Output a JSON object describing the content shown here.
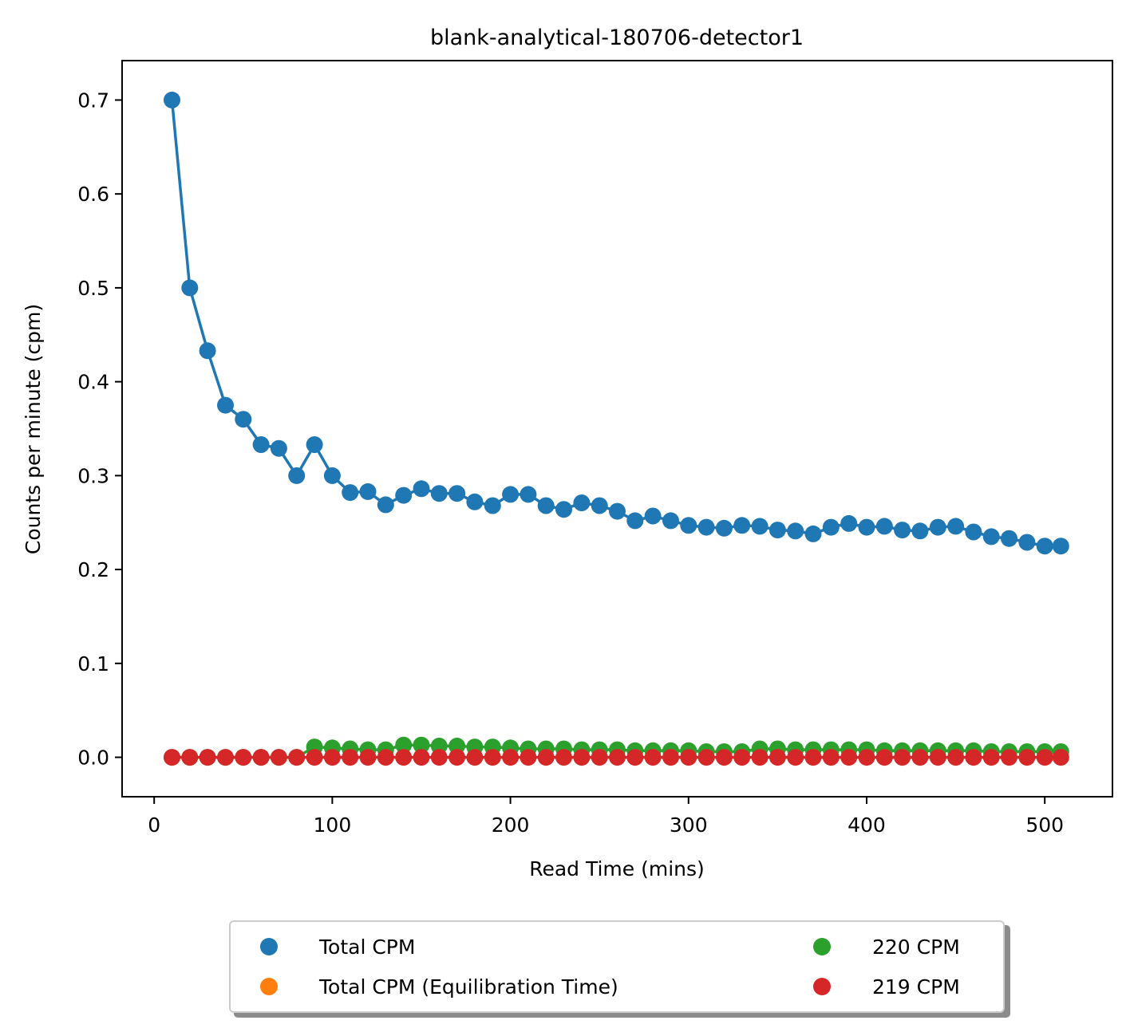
{
  "chart_data": {
    "type": "scatter",
    "title": "blank-analytical-180706-detector1",
    "xlabel": "Read Time (mins)",
    "ylabel": "Counts per minute (cpm)",
    "xlim": [
      -18,
      538
    ],
    "ylim": [
      -0.042,
      0.742
    ],
    "xticks": [
      0,
      100,
      200,
      300,
      400,
      500
    ],
    "yticks": [
      0.0,
      0.1,
      0.2,
      0.3,
      0.4,
      0.5,
      0.6,
      0.7
    ],
    "xtick_labels": [
      "0",
      "100",
      "200",
      "300",
      "400",
      "500"
    ],
    "ytick_labels": [
      "0.0",
      "0.1",
      "0.2",
      "0.3",
      "0.4",
      "0.5",
      "0.6",
      "0.7"
    ],
    "grid": false,
    "legend_position": "bottom-center",
    "legend": [
      {
        "label": "Total CPM",
        "color": "#1f77b4"
      },
      {
        "label": "Total CPM (Equilibration Time)",
        "color": "#ff7f0e"
      },
      {
        "label": "220 CPM",
        "color": "#2ca02c"
      },
      {
        "label": "219 CPM",
        "color": "#d62728"
      }
    ],
    "x": [
      10,
      20,
      30,
      40,
      50,
      60,
      70,
      80,
      90,
      100,
      110,
      120,
      130,
      140,
      150,
      160,
      170,
      180,
      190,
      200,
      210,
      220,
      230,
      240,
      250,
      260,
      270,
      280,
      290,
      300,
      310,
      320,
      330,
      340,
      350,
      360,
      370,
      380,
      390,
      400,
      410,
      420,
      430,
      440,
      450,
      460,
      470,
      480,
      490,
      500,
      509
    ],
    "series": [
      {
        "name": "Total CPM",
        "color": "#1f77b4",
        "line": true,
        "values": [
          0.7,
          0.5,
          0.433,
          0.375,
          0.36,
          0.333,
          0.329,
          0.3,
          0.333,
          0.3,
          0.282,
          0.283,
          0.269,
          0.279,
          0.286,
          0.281,
          0.281,
          0.272,
          0.268,
          0.28,
          0.28,
          0.268,
          0.264,
          0.271,
          0.268,
          0.262,
          0.252,
          0.257,
          0.252,
          0.247,
          0.245,
          0.244,
          0.247,
          0.246,
          0.242,
          0.241,
          0.238,
          0.245,
          0.249,
          0.245,
          0.246,
          0.242,
          0.241,
          0.245,
          0.246,
          0.24,
          0.235,
          0.233,
          0.229,
          0.225,
          0.225
        ]
      },
      {
        "name": "220 CPM",
        "color": "#2ca02c",
        "line": true,
        "values": [
          0.0,
          0.0,
          0.0,
          0.0,
          0.0,
          0.0,
          0.0,
          0.0,
          0.011,
          0.01,
          0.009,
          0.008,
          0.008,
          0.013,
          0.013,
          0.012,
          0.012,
          0.011,
          0.011,
          0.01,
          0.009,
          0.009,
          0.009,
          0.008,
          0.008,
          0.008,
          0.007,
          0.007,
          0.007,
          0.007,
          0.006,
          0.006,
          0.006,
          0.009,
          0.009,
          0.008,
          0.008,
          0.008,
          0.008,
          0.008,
          0.007,
          0.007,
          0.007,
          0.007,
          0.007,
          0.007,
          0.006,
          0.006,
          0.006,
          0.006,
          0.006
        ]
      },
      {
        "name": "219 CPM",
        "color": "#d62728",
        "line": true,
        "values": [
          0.0,
          0.0,
          0.0,
          0.0,
          0.0,
          0.0,
          0.0,
          0.0,
          0.0,
          0.0,
          0.0,
          0.0,
          0.0,
          0.0,
          0.0,
          0.0,
          0.0,
          0.0,
          0.0,
          0.0,
          0.0,
          0.0,
          0.0,
          0.0,
          0.0,
          0.0,
          0.0,
          0.0,
          0.0,
          0.0,
          0.0,
          0.0,
          0.0,
          0.0,
          0.0,
          0.0,
          0.0,
          0.0,
          0.0,
          0.0,
          0.0,
          0.0,
          0.0,
          0.0,
          0.0,
          0.0,
          0.0,
          0.0,
          0.0,
          0.0,
          0.0
        ]
      }
    ]
  }
}
